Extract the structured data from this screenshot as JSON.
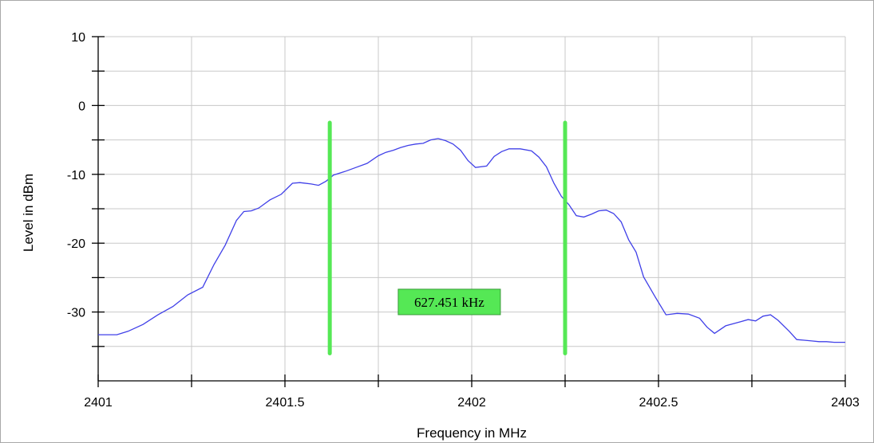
{
  "chart_data": {
    "type": "line",
    "title": "",
    "xlabel": "Frequency in MHz",
    "ylabel": "Level in dBm",
    "xlim": [
      2401,
      2403
    ],
    "ylim": [
      -40,
      10
    ],
    "xticks_major": [
      2401,
      2401.5,
      2402,
      2402.5,
      2403
    ],
    "xtick_labels": [
      "2401",
      "2401.5",
      "2402",
      "2402.5",
      "2403"
    ],
    "yticks_major": [
      10,
      0,
      -10,
      -20,
      -30
    ],
    "ytick_labels": [
      "10",
      "0",
      "-10",
      "-20",
      "-30"
    ],
    "grid": true,
    "line_color": "#4040e8",
    "marker_color": "#55e855",
    "series": [
      {
        "x": [
          2401.0,
          2401.05,
          2401.08,
          2401.12,
          2401.16,
          2401.2,
          2401.24,
          2401.28,
          2401.31,
          2401.34,
          2401.37,
          2401.39,
          2401.41,
          2401.43,
          2401.46,
          2401.49,
          2401.52,
          2401.54,
          2401.57,
          2401.59,
          2401.61,
          2401.63,
          2401.66,
          2401.69,
          2401.72,
          2401.75,
          2401.77,
          2401.79,
          2401.81,
          2401.83,
          2401.85,
          2401.87,
          2401.89,
          2401.91,
          2401.93,
          2401.95,
          2401.97,
          2401.99,
          2402.01,
          2402.04,
          2402.06,
          2402.08,
          2402.1,
          2402.13,
          2402.16,
          2402.18,
          2402.2,
          2402.22,
          2402.24,
          2402.26,
          2402.28,
          2402.3,
          2402.32,
          2402.34,
          2402.36,
          2402.38,
          2402.4,
          2402.42,
          2402.44,
          2402.46,
          2402.49,
          2402.52,
          2402.55,
          2402.58,
          2402.61,
          2402.63,
          2402.65,
          2402.68,
          2402.72,
          2402.74,
          2402.76,
          2402.78,
          2402.8,
          2402.82,
          2402.85,
          2402.87,
          2402.89,
          2402.91,
          2402.93,
          2402.95,
          2402.97,
          2402.99,
          2403.0
        ],
        "y": [
          -33.3,
          -33.3,
          -32.8,
          -31.8,
          -30.4,
          -29.2,
          -27.5,
          -26.4,
          -23.1,
          -20.3,
          -16.7,
          -15.4,
          -15.3,
          -14.9,
          -13.7,
          -12.9,
          -11.3,
          -11.2,
          -11.4,
          -11.6,
          -11.0,
          -10.1,
          -9.6,
          -9.0,
          -8.4,
          -7.3,
          -6.8,
          -6.5,
          -6.1,
          -5.8,
          -5.6,
          -5.5,
          -5.0,
          -4.8,
          -5.1,
          -5.6,
          -6.5,
          -8.0,
          -9.0,
          -8.8,
          -7.4,
          -6.7,
          -6.3,
          -6.3,
          -6.6,
          -7.5,
          -8.9,
          -11.3,
          -13.2,
          -14.4,
          -16.0,
          -16.2,
          -15.8,
          -15.3,
          -15.2,
          -15.7,
          -16.9,
          -19.5,
          -21.3,
          -24.9,
          -27.7,
          -30.4,
          -30.2,
          -30.3,
          -30.9,
          -32.2,
          -33.1,
          -32.0,
          -31.4,
          -31.1,
          -31.3,
          -30.6,
          -30.4,
          -31.2,
          -32.8,
          -34.0,
          -34.1,
          -34.2,
          -34.3,
          -34.3,
          -34.4,
          -34.4,
          -34.4
        ]
      }
    ],
    "markers": [
      {
        "x": 2401.62,
        "y_from": -36,
        "y_to": -2.5
      },
      {
        "x": 2402.25,
        "y_from": -36,
        "y_to": -2.5
      }
    ],
    "annotation": {
      "text": "627.451 kHz",
      "x": 2401.94,
      "y": -29
    }
  }
}
